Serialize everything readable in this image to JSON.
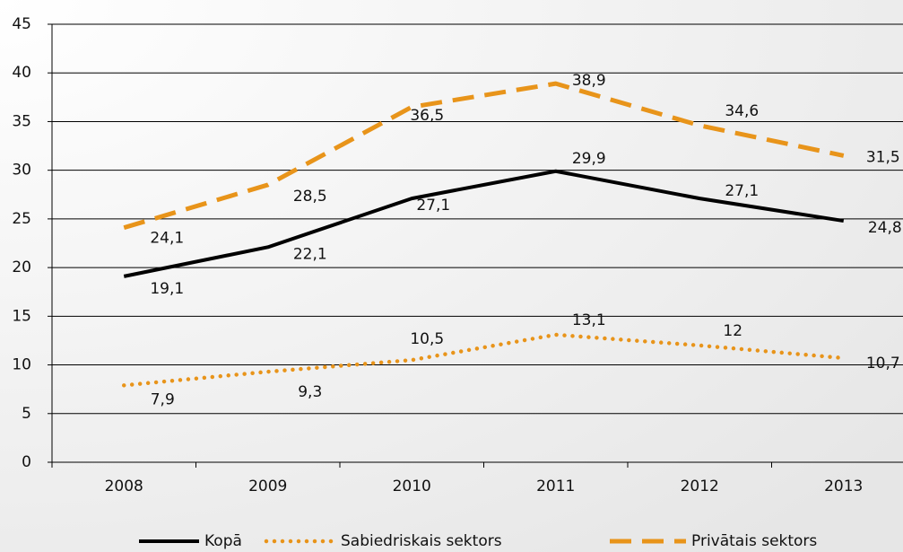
{
  "chart_data": {
    "type": "line",
    "categories": [
      "2008",
      "2009",
      "2010",
      "2011",
      "2012",
      "2013"
    ],
    "series": [
      {
        "name": "Kopā",
        "color": "#000000",
        "style": "solid",
        "values": [
          19.1,
          22.1,
          27.1,
          29.9,
          27.1,
          24.8
        ],
        "value_labels": [
          "19,1",
          "22,1",
          "27,1",
          "29,9",
          "27,1",
          "24,8"
        ]
      },
      {
        "name": "Sabiedriskais sektors",
        "color": "#e8941a",
        "style": "dotted",
        "values": [
          7.9,
          9.3,
          10.5,
          13.1,
          12,
          10.7
        ],
        "value_labels": [
          "7,9",
          "9,3",
          "10,5",
          "13,1",
          "12",
          "10,7"
        ]
      },
      {
        "name": "Privātais sektors",
        "color": "#e8941a",
        "style": "dashed",
        "values": [
          24.1,
          28.5,
          36.5,
          38.9,
          34.6,
          31.5
        ],
        "value_labels": [
          "24,1",
          "28,5",
          "36,5",
          "38,9",
          "34,6",
          "31,5"
        ]
      }
    ],
    "ylim": [
      0,
      45
    ],
    "yticks": [
      0,
      5,
      10,
      15,
      20,
      25,
      30,
      35,
      40,
      45
    ],
    "grid": true,
    "legend": "bottom"
  }
}
